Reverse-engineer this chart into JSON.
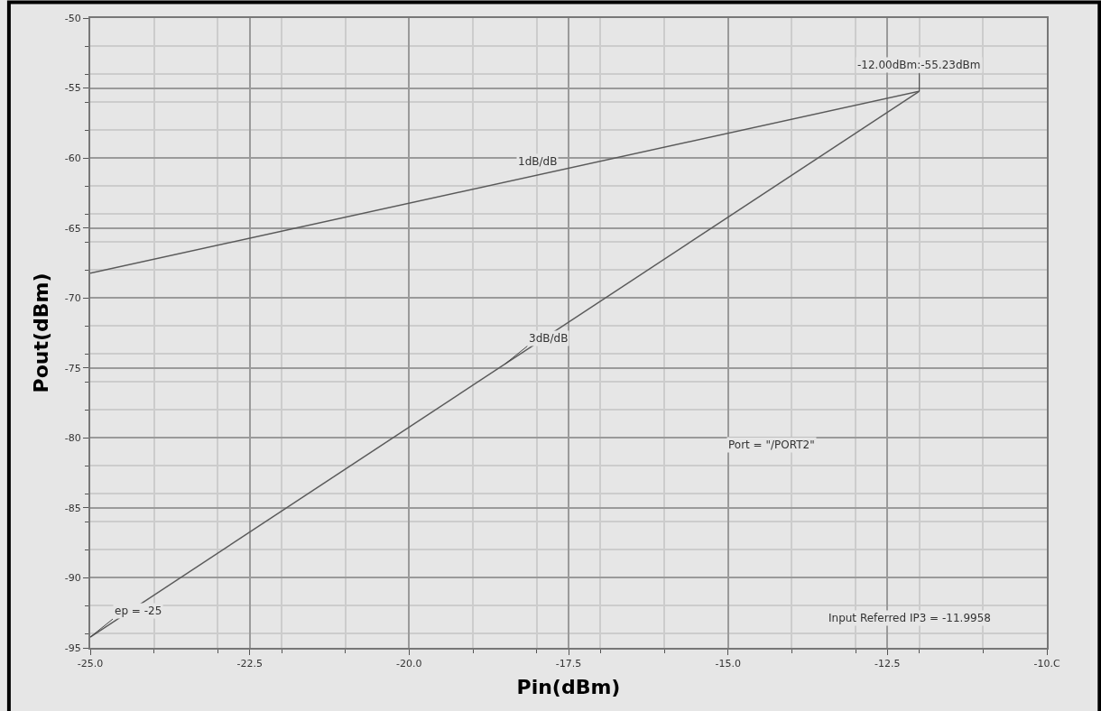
{
  "chart_data": {
    "type": "line",
    "xlabel": "Pin(dBm)",
    "ylabel": "Pout(dBm)",
    "series": [
      {
        "color": "#5a5a5a",
        "values": [
          -68.23,
          -55.23
        ]
      },
      {
        "color": "#5a5a5a",
        "values": [
          -94.23,
          -55.23
        ]
      }
    ],
    "x": [
      -25,
      -12
    ],
    "xlim": [
      -25,
      -10
    ],
    "xticks": [
      {
        "value": -25,
        "label": "-25.0"
      },
      {
        "value": -22.5,
        "label": "-22.5"
      },
      {
        "value": -20,
        "label": "-20.0"
      },
      {
        "value": -17.5,
        "label": "-17.5"
      },
      {
        "value": -15,
        "label": "-15.0"
      },
      {
        "value": -12.5,
        "label": "-12.5"
      },
      {
        "value": -10,
        "label": "-10.C"
      }
    ],
    "ylim": [
      -95,
      -50
    ],
    "yticks": [
      -95,
      -90,
      -85,
      -80,
      -75,
      -70,
      -65,
      -60,
      -55,
      -50
    ],
    "grid": true,
    "marker": "none",
    "line_style": "solid",
    "annotations": [
      {
        "text": "-12.00dBm:-55.23dBm",
        "x": -12,
        "y": -55.23
      },
      "1dB/dB",
      {
        "text": "3dB/dB",
        "x": -18.5,
        "y": -74.73
      },
      {
        "text": "ep = -25",
        "x": -25,
        "y": -94.23
      },
      "Port = \"/PORT2\"",
      "Input Referred IP3 = -11.9958"
    ]
  }
}
